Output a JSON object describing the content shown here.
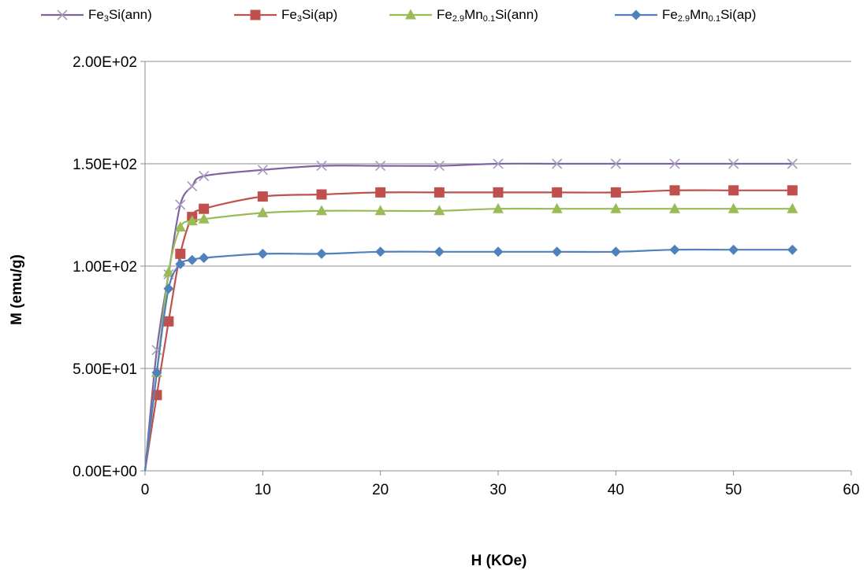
{
  "chart_data": {
    "type": "line",
    "xlabel": "H (KOe)",
    "ylabel": "M (emu/g)",
    "xlim": [
      0,
      60
    ],
    "ylim": [
      0,
      200
    ],
    "x_ticks": [
      "0",
      "10",
      "20",
      "30",
      "40",
      "50",
      "60"
    ],
    "y_ticks": [
      "0.00E+00",
      "5.00E+01",
      "1.00E+02",
      "1.50E+02",
      "2.00E+02"
    ],
    "grid": "horizontal",
    "legend_position": "top",
    "x": [
      0,
      1,
      2,
      3,
      4,
      5,
      10,
      15,
      20,
      25,
      30,
      35,
      40,
      45,
      50,
      55
    ],
    "series": [
      {
        "name": "Fe3Si(ann)",
        "name_parts": [
          "Fe",
          "3",
          "Si(ann)"
        ],
        "marker": "x",
        "color": "#8064A2",
        "values": [
          0,
          59,
          96,
          130,
          139,
          144,
          147,
          149,
          149,
          149,
          150,
          150,
          150,
          150,
          150,
          150
        ]
      },
      {
        "name": "Fe3Si(ap)",
        "name_parts": [
          "Fe",
          "3",
          "Si(ap)"
        ],
        "marker": "square",
        "color": "#C0504D",
        "values": [
          0,
          37,
          73,
          106,
          124,
          128,
          134,
          135,
          136,
          136,
          136,
          136,
          136,
          137,
          137,
          137
        ]
      },
      {
        "name": "Fe2.9Mn0.1Si(ann)",
        "name_parts": [
          "Fe",
          "2.9",
          "Mn",
          "0.1",
          "Si(ann)"
        ],
        "marker": "triangle",
        "color": "#9BBB59",
        "values": [
          0,
          48,
          97,
          119,
          122,
          123,
          126,
          127,
          127,
          127,
          128,
          128,
          128,
          128,
          128,
          128
        ]
      },
      {
        "name": "Fe2.9Mn0.1Si(ap)",
        "name_parts": [
          "Fe",
          "2.9",
          "Mn",
          "0.1",
          "Si(ap)"
        ],
        "marker": "diamond",
        "color": "#4F81BD",
        "values": [
          0,
          48,
          89,
          101,
          103,
          104,
          106,
          106,
          107,
          107,
          107,
          107,
          107,
          108,
          108,
          108
        ]
      }
    ]
  }
}
